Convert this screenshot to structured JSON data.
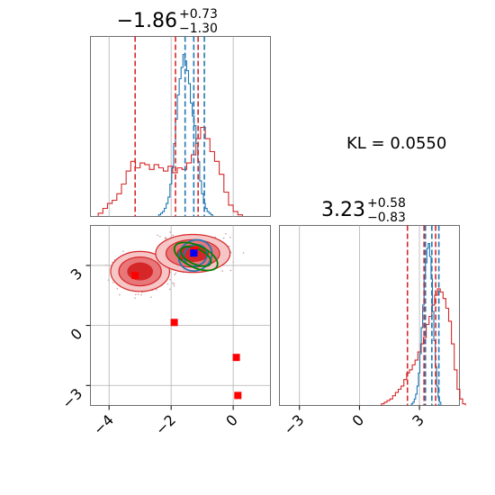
{
  "figure": {
    "kl_text": "KL = 0.0550",
    "colors": {
      "red": "#d62728",
      "blue": "#1f77b4",
      "green": "#008000",
      "grid": "#b0b0b0",
      "contour_fill_dark": "#d62728",
      "contour_fill_mid": "#e8777a",
      "contour_fill_light": "#f6c5c6"
    }
  },
  "chart_data": [
    {
      "type": "histogram",
      "panel": "x-marginal",
      "title": {
        "value": "−1.86",
        "upper": "+0.73",
        "lower": "−1.30"
      },
      "xlim": [
        -4.6,
        1.2
      ],
      "red_quantile_lines": [
        -3.16,
        -1.86,
        -1.13
      ],
      "blue_quantile_lines": [
        -1.55,
        -1.27,
        -0.93
      ],
      "red_hist": {
        "bin_width": 0.15,
        "start": -4.35,
        "heights": [
          0.02,
          0.05,
          0.08,
          0.1,
          0.14,
          0.2,
          0.28,
          0.34,
          0.3,
          0.33,
          0.32,
          0.29,
          0.32,
          0.3,
          0.28,
          0.31,
          0.27,
          0.3,
          0.29,
          0.33,
          0.38,
          0.48,
          0.55,
          0.48,
          0.4,
          0.34,
          0.26,
          0.15,
          0.07,
          0.03,
          0.01
        ]
      },
      "blue_hist": {
        "bin_width": 0.06,
        "start": -2.4,
        "heights": [
          0.01,
          0.02,
          0.03,
          0.05,
          0.08,
          0.12,
          0.2,
          0.3,
          0.45,
          0.6,
          0.75,
          0.85,
          0.92,
          1.0,
          0.96,
          0.9,
          0.82,
          0.7,
          0.62,
          0.56,
          0.45,
          0.34,
          0.22,
          0.14,
          0.08,
          0.05,
          0.03,
          0.02,
          0.01
        ]
      }
    },
    {
      "type": "histogram",
      "panel": "y-marginal",
      "title": {
        "value": "3.23",
        "upper": "+0.58",
        "lower": "−0.83"
      },
      "xlim": [
        -4.0,
        5.0
      ],
      "xticks": [
        "−3",
        "0",
        "3"
      ],
      "red_quantile_lines": [
        2.4,
        3.23,
        3.81
      ],
      "blue_quantile_lines": [
        3.3,
        3.62,
        3.97
      ],
      "red_hist": {
        "bin_width": 0.14,
        "start": 1.1,
        "heights": [
          0.01,
          0.02,
          0.03,
          0.04,
          0.06,
          0.08,
          0.1,
          0.12,
          0.16,
          0.2,
          0.22,
          0.25,
          0.28,
          0.33,
          0.38,
          0.42,
          0.5,
          0.55,
          0.62,
          0.68,
          0.72,
          0.7,
          0.66,
          0.6,
          0.52,
          0.38,
          0.22,
          0.1,
          0.04,
          0.01
        ]
      },
      "blue_hist": {
        "bin_width": 0.07,
        "start": 2.6,
        "heights": [
          0.01,
          0.02,
          0.04,
          0.07,
          0.12,
          0.2,
          0.32,
          0.48,
          0.62,
          0.78,
          0.88,
          0.97,
          1.0,
          0.92,
          0.78,
          0.58,
          0.4,
          0.24,
          0.12,
          0.05,
          0.02
        ]
      }
    },
    {
      "type": "scatter",
      "panel": "joint",
      "xlim": [
        -4.6,
        1.2
      ],
      "ylim": [
        -4.0,
        5.0
      ],
      "xticks": [
        "−4",
        "−2",
        "0"
      ],
      "yticks": [
        "−3",
        "0",
        "3"
      ],
      "red_square_markers": [
        {
          "x": -3.16,
          "y": 2.5
        },
        {
          "x": -1.9,
          "y": 0.15
        },
        {
          "x": 0.1,
          "y": -1.6
        },
        {
          "x": 0.15,
          "y": -3.5
        },
        {
          "x": -1.25,
          "y": 3.75
        }
      ],
      "blue_square_marker": {
        "x": -1.27,
        "y": 3.62
      },
      "red_contours": [
        {
          "cx": -3.0,
          "cy": 2.7,
          "rx": 0.95,
          "ry": 1.0
        },
        {
          "cx": -1.3,
          "cy": 3.6,
          "rx": 1.2,
          "ry": 0.95
        }
      ],
      "blue_contour": {
        "cx": -1.22,
        "cy": 3.5,
        "rx": 0.55,
        "ry": 0.75
      },
      "green_contour": {
        "cx": -1.2,
        "cy": 3.45,
        "rx": 0.75,
        "ry": 0.55
      }
    }
  ]
}
